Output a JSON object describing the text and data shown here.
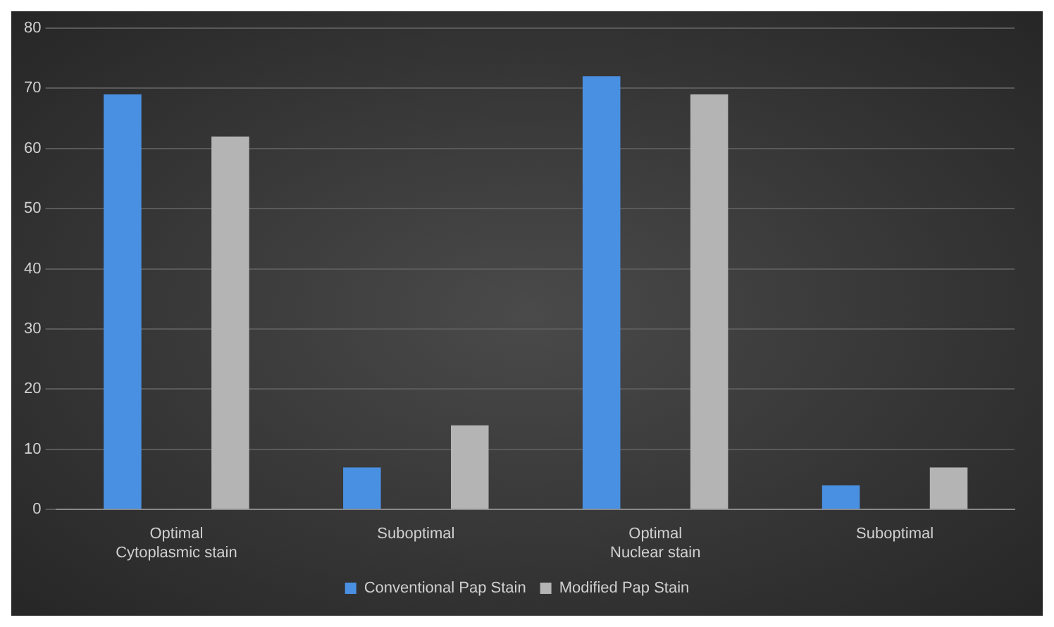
{
  "chart_data": {
    "type": "bar",
    "categories": [
      "Optimal Cytoplasmic stain",
      "Suboptimal",
      "Optimal Nuclear stain",
      "Suboptimal"
    ],
    "series": [
      {
        "name": "Conventional Pap Stain",
        "color": "#4a90e2",
        "values": [
          69,
          7,
          72,
          4
        ]
      },
      {
        "name": "Modified Pap Stain",
        "color": "#b4b4b4",
        "values": [
          62,
          14,
          69,
          7
        ]
      }
    ],
    "ylim": [
      0,
      80
    ],
    "yticks": [
      0,
      10,
      20,
      30,
      40,
      50,
      60,
      70,
      80
    ],
    "grid": "y",
    "legend": "bottom"
  }
}
